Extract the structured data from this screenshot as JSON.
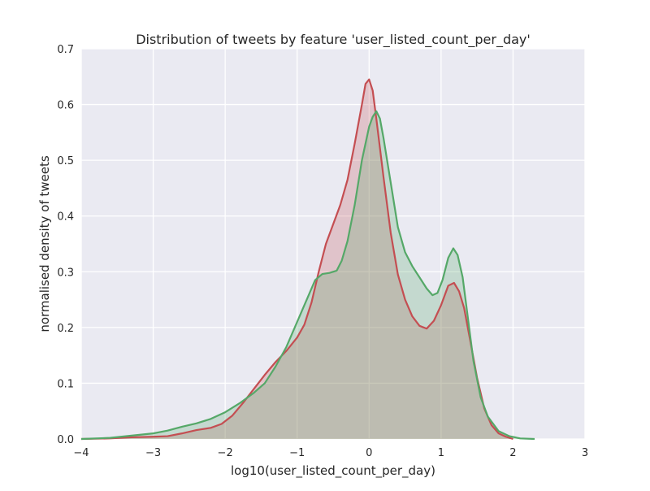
{
  "chart_data": {
    "type": "area",
    "title": "Distribution of tweets by feature 'user_listed_count_per_day'",
    "xlabel": "log10(user_listed_count_per_day)",
    "ylabel": "normalised density of tweets",
    "xlim": [
      -4,
      3
    ],
    "ylim": [
      0,
      0.7
    ],
    "xticks": [
      -4,
      -3,
      -2,
      -1,
      0,
      1,
      2,
      3
    ],
    "xtick_labels": [
      "−4",
      "−3",
      "−2",
      "−1",
      "0",
      "1",
      "2",
      "3"
    ],
    "yticks": [
      0,
      0.1,
      0.2,
      0.3,
      0.4,
      0.5,
      0.6,
      0.7
    ],
    "ytick_labels": [
      "0.0",
      "0.1",
      "0.2",
      "0.3",
      "0.4",
      "0.5",
      "0.6",
      "0.7"
    ],
    "grid": true,
    "background": "#eaeaf2",
    "series": [
      {
        "color": "#c44e52",
        "fill": "rgba(196,78,82,0.25)",
        "points": [
          [
            -4.0,
            0.0
          ],
          [
            -3.6,
            0.001
          ],
          [
            -3.3,
            0.003
          ],
          [
            -3.0,
            0.004
          ],
          [
            -2.8,
            0.005
          ],
          [
            -2.6,
            0.01
          ],
          [
            -2.4,
            0.016
          ],
          [
            -2.2,
            0.02
          ],
          [
            -2.05,
            0.027
          ],
          [
            -1.9,
            0.042
          ],
          [
            -1.75,
            0.065
          ],
          [
            -1.6,
            0.09
          ],
          [
            -1.45,
            0.115
          ],
          [
            -1.3,
            0.138
          ],
          [
            -1.15,
            0.158
          ],
          [
            -1.0,
            0.182
          ],
          [
            -0.9,
            0.205
          ],
          [
            -0.8,
            0.245
          ],
          [
            -0.7,
            0.3
          ],
          [
            -0.6,
            0.35
          ],
          [
            -0.5,
            0.385
          ],
          [
            -0.4,
            0.42
          ],
          [
            -0.3,
            0.465
          ],
          [
            -0.2,
            0.53
          ],
          [
            -0.1,
            0.6
          ],
          [
            -0.05,
            0.637
          ],
          [
            0.0,
            0.645
          ],
          [
            0.05,
            0.625
          ],
          [
            0.1,
            0.575
          ],
          [
            0.2,
            0.47
          ],
          [
            0.3,
            0.37
          ],
          [
            0.4,
            0.295
          ],
          [
            0.5,
            0.25
          ],
          [
            0.6,
            0.22
          ],
          [
            0.7,
            0.203
          ],
          [
            0.8,
            0.198
          ],
          [
            0.9,
            0.212
          ],
          [
            1.0,
            0.24
          ],
          [
            1.1,
            0.275
          ],
          [
            1.18,
            0.28
          ],
          [
            1.25,
            0.265
          ],
          [
            1.32,
            0.235
          ],
          [
            1.4,
            0.18
          ],
          [
            1.5,
            0.11
          ],
          [
            1.6,
            0.055
          ],
          [
            1.7,
            0.025
          ],
          [
            1.8,
            0.01
          ],
          [
            1.9,
            0.004
          ],
          [
            2.0,
            0.0
          ]
        ]
      },
      {
        "color": "#55a868",
        "fill": "rgba(85,168,104,0.25)",
        "points": [
          [
            -4.0,
            0.0
          ],
          [
            -3.6,
            0.002
          ],
          [
            -3.3,
            0.006
          ],
          [
            -3.0,
            0.01
          ],
          [
            -2.8,
            0.015
          ],
          [
            -2.6,
            0.022
          ],
          [
            -2.4,
            0.028
          ],
          [
            -2.2,
            0.036
          ],
          [
            -2.0,
            0.048
          ],
          [
            -1.8,
            0.064
          ],
          [
            -1.6,
            0.083
          ],
          [
            -1.45,
            0.1
          ],
          [
            -1.3,
            0.13
          ],
          [
            -1.15,
            0.165
          ],
          [
            -1.0,
            0.21
          ],
          [
            -0.85,
            0.255
          ],
          [
            -0.75,
            0.285
          ],
          [
            -0.65,
            0.296
          ],
          [
            -0.55,
            0.298
          ],
          [
            -0.45,
            0.302
          ],
          [
            -0.38,
            0.32
          ],
          [
            -0.3,
            0.355
          ],
          [
            -0.2,
            0.42
          ],
          [
            -0.1,
            0.5
          ],
          [
            0.0,
            0.56
          ],
          [
            0.05,
            0.578
          ],
          [
            0.1,
            0.588
          ],
          [
            0.15,
            0.575
          ],
          [
            0.2,
            0.54
          ],
          [
            0.3,
            0.46
          ],
          [
            0.4,
            0.38
          ],
          [
            0.5,
            0.335
          ],
          [
            0.6,
            0.31
          ],
          [
            0.7,
            0.29
          ],
          [
            0.8,
            0.27
          ],
          [
            0.88,
            0.258
          ],
          [
            0.95,
            0.262
          ],
          [
            1.02,
            0.285
          ],
          [
            1.1,
            0.325
          ],
          [
            1.17,
            0.342
          ],
          [
            1.23,
            0.33
          ],
          [
            1.3,
            0.29
          ],
          [
            1.38,
            0.21
          ],
          [
            1.45,
            0.14
          ],
          [
            1.55,
            0.075
          ],
          [
            1.65,
            0.04
          ],
          [
            1.8,
            0.014
          ],
          [
            1.95,
            0.005
          ],
          [
            2.1,
            0.001
          ],
          [
            2.3,
            0.0
          ]
        ]
      }
    ]
  }
}
